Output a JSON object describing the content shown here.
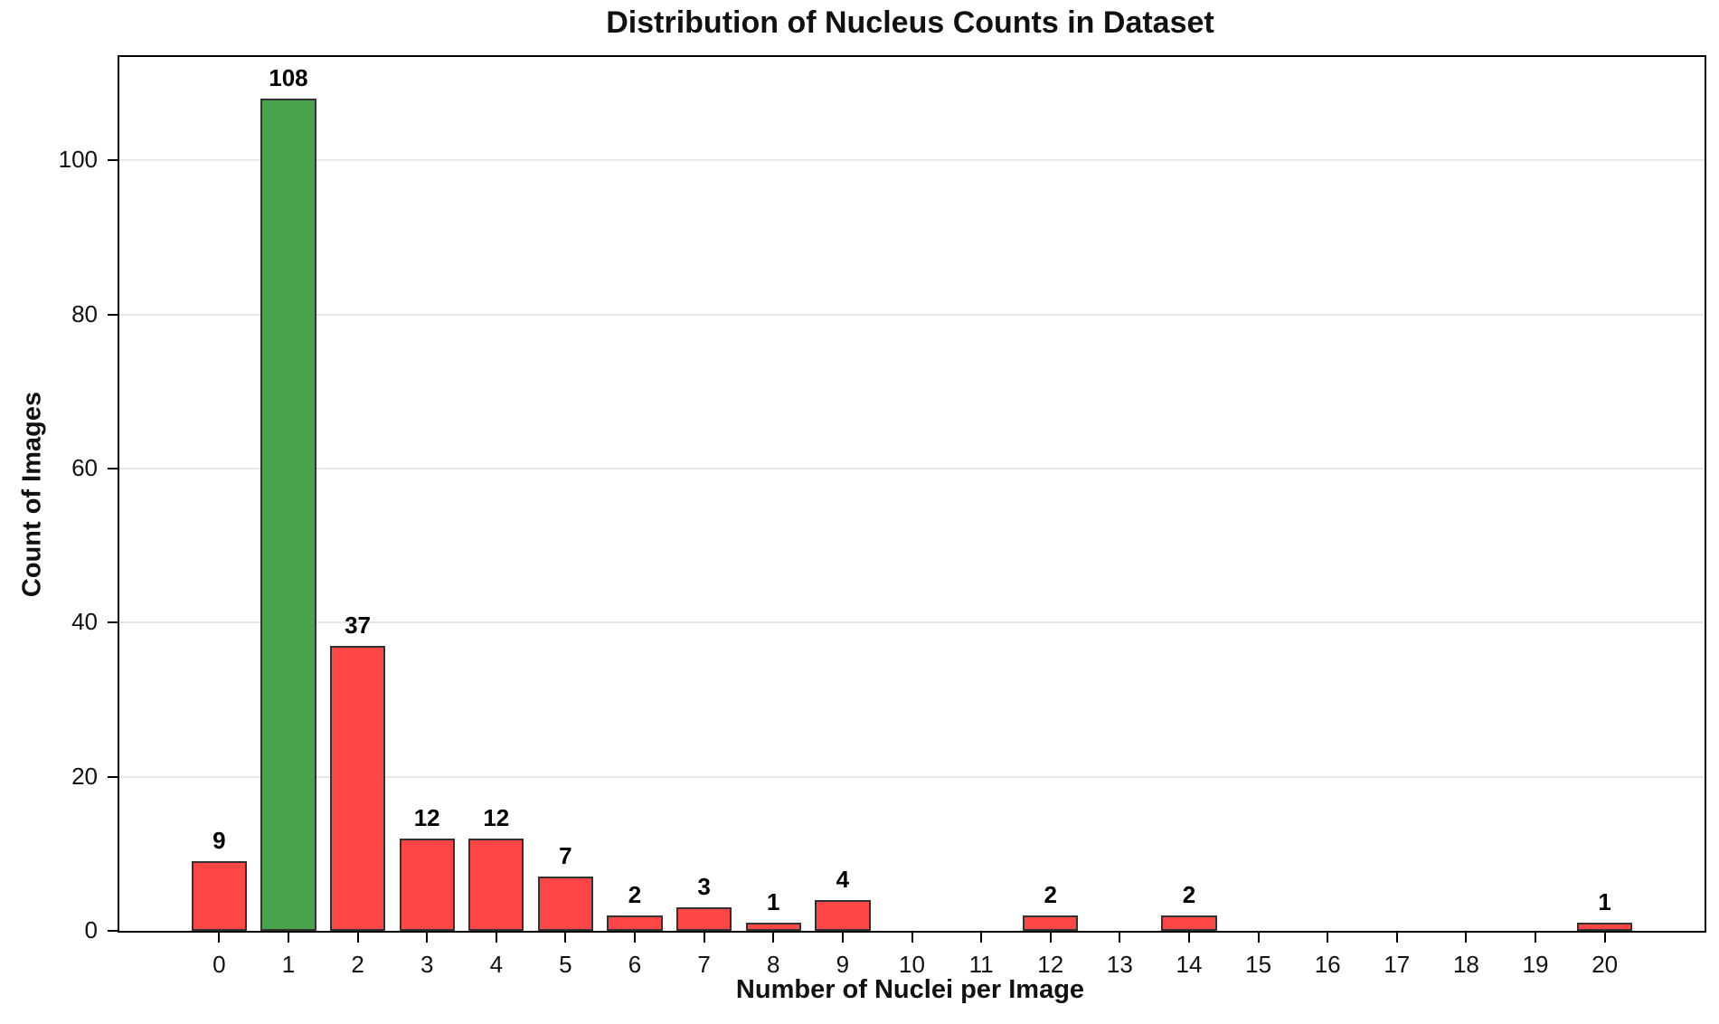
{
  "chart_data": {
    "type": "bar",
    "title": "Distribution of Nucleus Counts in Dataset",
    "xlabel": "Number of Nuclei per Image",
    "ylabel": "Count of Images",
    "categories": [
      0,
      1,
      2,
      3,
      4,
      5,
      6,
      7,
      8,
      9,
      10,
      11,
      12,
      13,
      14,
      15,
      16,
      17,
      18,
      19,
      20
    ],
    "values": [
      9,
      108,
      37,
      12,
      12,
      7,
      2,
      3,
      1,
      4,
      0,
      0,
      2,
      0,
      2,
      0,
      0,
      0,
      0,
      0,
      1
    ],
    "bar_value_labels_shown_for_nonzero": true,
    "highlight_index": 1,
    "yticks": [
      0,
      20,
      40,
      60,
      80,
      100
    ],
    "ylim": [
      0,
      113.4
    ],
    "xlim": [
      -1.44,
      21.44
    ],
    "bar_width_units": 0.8,
    "grid": "horizontal",
    "legend": "none",
    "colors": {
      "bar_fill": "#ff4646",
      "highlight_fill": "#49a24c",
      "bar_edge": "#333333",
      "gridline": "#e7e7e7",
      "spine": "#000000",
      "text": "#111111"
    }
  }
}
